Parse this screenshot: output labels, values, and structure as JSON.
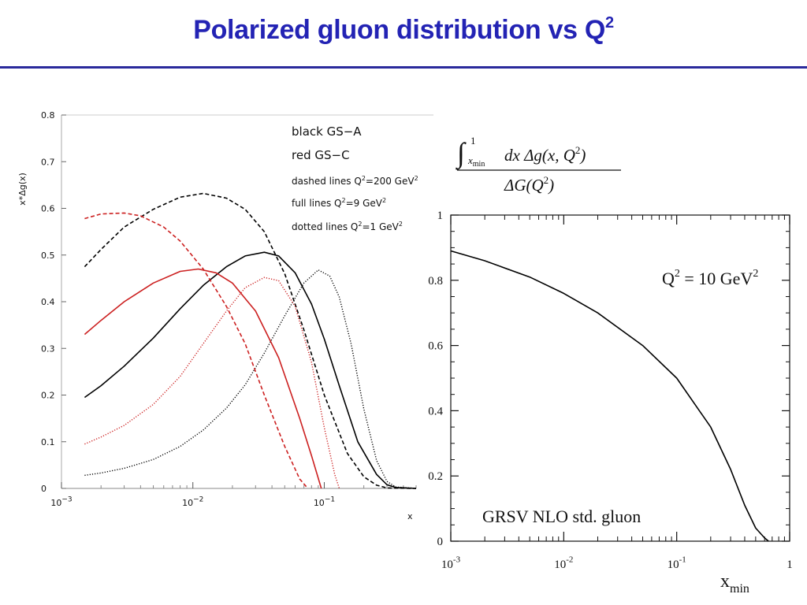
{
  "slide": {
    "title": "Polarized gluon distribution vs Q",
    "title_superscript": "2",
    "title_color": "#2323b4",
    "rule_color": "#2a2a9c"
  },
  "chart_data": [
    {
      "type": "line",
      "x_scale": "log",
      "xlim": [
        0.001,
        0.5
      ],
      "ylim": [
        0,
        0.8
      ],
      "ylabel": "x*Δg(x)",
      "xlabel": "x",
      "y_ticks": [
        "0",
        "0.1",
        "0.2",
        "0.3",
        "0.4",
        "0.5",
        "0.6",
        "0.7",
        "0.8"
      ],
      "x_ticks": [
        {
          "base": "10",
          "exp": "−3"
        },
        {
          "base": "10",
          "exp": "−2"
        },
        {
          "base": "10",
          "exp": "−1"
        }
      ],
      "legend_position": "top-right",
      "legend": [
        {
          "text": "black GS−A",
          "sup": "",
          "unit": ""
        },
        {
          "text": "red GS−C",
          "sup": "",
          "unit": ""
        },
        {
          "text": "dashed lines Q",
          "sup": "2",
          "unit": "=200 GeV",
          "unit_sup": "2"
        },
        {
          "text": "full lines Q",
          "sup": "2",
          "unit": "=9 GeV",
          "unit_sup": "2"
        },
        {
          "text": "dotted lines Q",
          "sup": "2",
          "unit": "=1 GeV",
          "unit_sup": "2"
        }
      ],
      "series": [
        {
          "color": "#000000",
          "dash": "dashed",
          "points": [
            [
              0.0015,
              0.475
            ],
            [
              0.002,
              0.512
            ],
            [
              0.003,
              0.56
            ],
            [
              0.005,
              0.598
            ],
            [
              0.008,
              0.624
            ],
            [
              0.012,
              0.632
            ],
            [
              0.018,
              0.622
            ],
            [
              0.025,
              0.598
            ],
            [
              0.035,
              0.55
            ],
            [
              0.05,
              0.46
            ],
            [
              0.07,
              0.34
            ],
            [
              0.1,
              0.2
            ],
            [
              0.15,
              0.075
            ],
            [
              0.2,
              0.025
            ],
            [
              0.25,
              0.007
            ],
            [
              0.3,
              0.001
            ],
            [
              0.5,
              0
            ]
          ]
        },
        {
          "color": "#000000",
          "dash": "solid",
          "points": [
            [
              0.0015,
              0.195
            ],
            [
              0.002,
              0.22
            ],
            [
              0.003,
              0.262
            ],
            [
              0.005,
              0.322
            ],
            [
              0.008,
              0.385
            ],
            [
              0.012,
              0.435
            ],
            [
              0.018,
              0.475
            ],
            [
              0.025,
              0.498
            ],
            [
              0.035,
              0.506
            ],
            [
              0.045,
              0.498
            ],
            [
              0.06,
              0.462
            ],
            [
              0.08,
              0.395
            ],
            [
              0.1,
              0.32
            ],
            [
              0.13,
              0.22
            ],
            [
              0.18,
              0.1
            ],
            [
              0.25,
              0.03
            ],
            [
              0.3,
              0.008
            ],
            [
              0.35,
              0.002
            ],
            [
              0.5,
              0
            ]
          ]
        },
        {
          "color": "#000000",
          "dash": "dotted",
          "points": [
            [
              0.0015,
              0.028
            ],
            [
              0.002,
              0.033
            ],
            [
              0.003,
              0.043
            ],
            [
              0.005,
              0.062
            ],
            [
              0.008,
              0.09
            ],
            [
              0.012,
              0.125
            ],
            [
              0.018,
              0.172
            ],
            [
              0.025,
              0.222
            ],
            [
              0.035,
              0.29
            ],
            [
              0.05,
              0.37
            ],
            [
              0.07,
              0.44
            ],
            [
              0.09,
              0.468
            ],
            [
              0.11,
              0.455
            ],
            [
              0.13,
              0.41
            ],
            [
              0.16,
              0.31
            ],
            [
              0.2,
              0.17
            ],
            [
              0.25,
              0.06
            ],
            [
              0.3,
              0.015
            ],
            [
              0.35,
              0.003
            ],
            [
              0.5,
              0
            ]
          ]
        },
        {
          "color": "#cc2020",
          "dash": "dashed",
          "points": [
            [
              0.0015,
              0.578
            ],
            [
              0.002,
              0.588
            ],
            [
              0.003,
              0.59
            ],
            [
              0.004,
              0.584
            ],
            [
              0.006,
              0.56
            ],
            [
              0.008,
              0.53
            ],
            [
              0.012,
              0.47
            ],
            [
              0.018,
              0.39
            ],
            [
              0.025,
              0.31
            ],
            [
              0.035,
              0.2
            ],
            [
              0.05,
              0.09
            ],
            [
              0.065,
              0.02
            ],
            [
              0.075,
              0
            ]
          ]
        },
        {
          "color": "#cc2020",
          "dash": "solid",
          "points": [
            [
              0.0015,
              0.33
            ],
            [
              0.002,
              0.36
            ],
            [
              0.003,
              0.4
            ],
            [
              0.005,
              0.44
            ],
            [
              0.008,
              0.465
            ],
            [
              0.011,
              0.47
            ],
            [
              0.015,
              0.462
            ],
            [
              0.02,
              0.44
            ],
            [
              0.03,
              0.38
            ],
            [
              0.045,
              0.28
            ],
            [
              0.065,
              0.15
            ],
            [
              0.08,
              0.07
            ],
            [
              0.095,
              0
            ]
          ]
        },
        {
          "color": "#cc2020",
          "dash": "dotted",
          "points": [
            [
              0.0015,
              0.095
            ],
            [
              0.002,
              0.11
            ],
            [
              0.003,
              0.135
            ],
            [
              0.005,
              0.18
            ],
            [
              0.008,
              0.24
            ],
            [
              0.012,
              0.31
            ],
            [
              0.018,
              0.38
            ],
            [
              0.025,
              0.43
            ],
            [
              0.035,
              0.452
            ],
            [
              0.045,
              0.445
            ],
            [
              0.06,
              0.39
            ],
            [
              0.08,
              0.27
            ],
            [
              0.1,
              0.13
            ],
            [
              0.12,
              0.03
            ],
            [
              0.13,
              0
            ]
          ]
        }
      ]
    },
    {
      "type": "line",
      "x_scale": "log",
      "xlim": [
        0.001,
        1
      ],
      "ylim": [
        0,
        1
      ],
      "xlabel": "x",
      "xlabel_sub": "min",
      "y_ticks": [
        "0",
        "0.2",
        "0.4",
        "0.6",
        "0.8",
        "1"
      ],
      "x_ticks": [
        {
          "base": "10",
          "exp": "-3"
        },
        {
          "base": "10",
          "exp": "-2"
        },
        {
          "base": "10",
          "exp": "-1"
        },
        {
          "base": "1",
          "exp": ""
        }
      ],
      "annotation": {
        "q": "Q",
        "sup": "2",
        "value": " = 10 GeV",
        "value_sup": "2"
      },
      "caption": "GRSV NLO std. gluon",
      "formula": {
        "num_lower": "x",
        "num_lower_sub": "min",
        "num_upper": "1",
        "num_body": "dx Δg(x, Q",
        "num_sup": "2",
        "num_close": ")",
        "den": "ΔG(Q",
        "den_sup": "2",
        "den_close": ")"
      },
      "series": [
        {
          "color": "#000000",
          "dash": "solid",
          "points": [
            [
              0.001,
              0.89
            ],
            [
              0.002,
              0.86
            ],
            [
              0.005,
              0.81
            ],
            [
              0.01,
              0.76
            ],
            [
              0.02,
              0.7
            ],
            [
              0.05,
              0.6
            ],
            [
              0.1,
              0.5
            ],
            [
              0.2,
              0.35
            ],
            [
              0.3,
              0.22
            ],
            [
              0.4,
              0.11
            ],
            [
              0.5,
              0.04
            ],
            [
              0.6,
              0.01
            ],
            [
              0.65,
              0
            ]
          ]
        }
      ]
    }
  ]
}
